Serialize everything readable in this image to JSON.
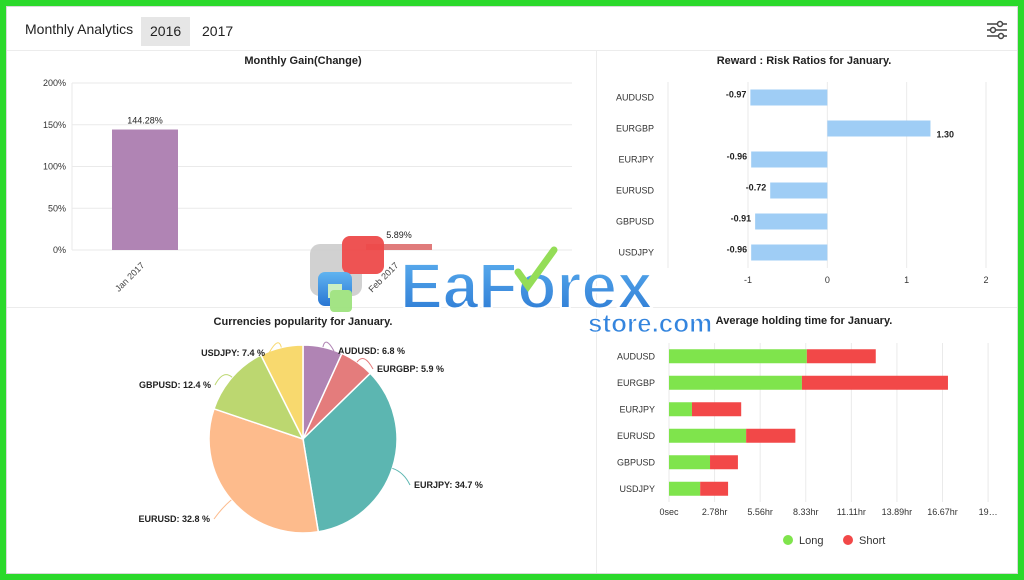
{
  "header": {
    "title": "Monthly Analytics",
    "tabs": [
      {
        "label": "2016",
        "active": true
      },
      {
        "label": "2017",
        "active": false
      }
    ]
  },
  "watermark": {
    "brand": "EaForex",
    "sub": "store.com"
  },
  "colors": {
    "purple": "#b084b4",
    "salmon": "#e07b7b",
    "light_blue": "#9fcdf5",
    "long": "#7fe44c",
    "short": "#f24848",
    "grid": "#eaeaea"
  },
  "chart_data": [
    {
      "type": "bar",
      "title": "Monthly Gain(Change)",
      "categories": [
        "Jan 2017",
        "Feb 2017"
      ],
      "values": [
        144.28,
        5.89
      ],
      "data_labels": [
        "144.28%",
        "5.89%"
      ],
      "bar_colors": [
        "#b084b4",
        "#e07b7b"
      ],
      "yticks": [
        "200%",
        "150%",
        "100%",
        "50%",
        "0%"
      ],
      "ylim": [
        0,
        200
      ],
      "grid": true
    },
    {
      "type": "bar",
      "orientation": "horizontal",
      "title": "Reward : Risk Ratios for January.",
      "categories": [
        "AUDUSD",
        "EURGBP",
        "EURJPY",
        "EURUSD",
        "GBPUSD",
        "USDJPY"
      ],
      "values": [
        -0.97,
        1.3,
        -0.96,
        -0.72,
        -0.91,
        -0.96
      ],
      "data_labels": [
        "-0.97",
        "1.30",
        "-0.96",
        "-0.72",
        "-0.91",
        "-0.96"
      ],
      "xticks": [
        "-1",
        "0",
        "1",
        "2"
      ],
      "xlim": [
        -1,
        2
      ],
      "grid": true
    },
    {
      "type": "pie",
      "title": "Currencies popularity for January.",
      "slices": [
        {
          "label": "AUDUSD: 6.8 %",
          "value": 6.8,
          "color": "#b084b4"
        },
        {
          "label": "EURGBP: 5.9 %",
          "value": 5.9,
          "color": "#e47c7c"
        },
        {
          "label": "EURJPY: 34.7 %",
          "value": 34.7,
          "color": "#5cb6b1"
        },
        {
          "label": "EURUSD: 32.8 %",
          "value": 32.8,
          "color": "#fdbb8c"
        },
        {
          "label": "GBPUSD: 12.4 %",
          "value": 12.4,
          "color": "#bcd770"
        },
        {
          "label": "USDJPY: 7.4 %",
          "value": 7.4,
          "color": "#f8d96e"
        }
      ]
    },
    {
      "type": "bar",
      "orientation": "horizontal",
      "stacked": true,
      "title": "Average holding time for January.",
      "categories": [
        "AUDUSD",
        "EURGBP",
        "EURJPY",
        "EURUSD",
        "GBPUSD",
        "USDJPY"
      ],
      "series": [
        {
          "name": "Long",
          "color": "#7fe44c",
          "values": [
            8.4,
            8.1,
            1.4,
            4.7,
            2.5,
            1.9
          ]
        },
        {
          "name": "Short",
          "color": "#f24848",
          "values": [
            4.2,
            8.9,
            3.0,
            3.0,
            1.7,
            1.7
          ]
        }
      ],
      "xticks": [
        "0sec",
        "2.78hr",
        "5.56hr",
        "8.33hr",
        "11.11hr",
        "13.89hr",
        "16.67hr",
        "19…"
      ],
      "xlim": [
        0,
        19.44
      ],
      "unit": "hr",
      "grid": true,
      "legend_position": "bottom"
    }
  ]
}
